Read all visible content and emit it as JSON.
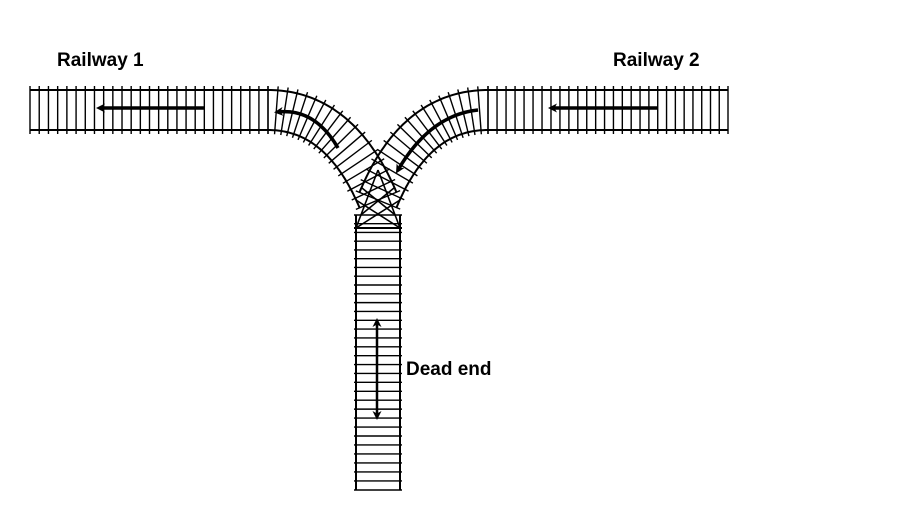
{
  "labels": {
    "railway_1": "Railway 1",
    "railway_2": "Railway 2",
    "dead_end": "Dead end"
  },
  "colors": {
    "ink": "#000000",
    "background": "#ffffff"
  },
  "icons": {
    "direction_arrow": "arrow-left-icon",
    "bidirectional_arrow": "double-arrow-vertical-icon"
  }
}
